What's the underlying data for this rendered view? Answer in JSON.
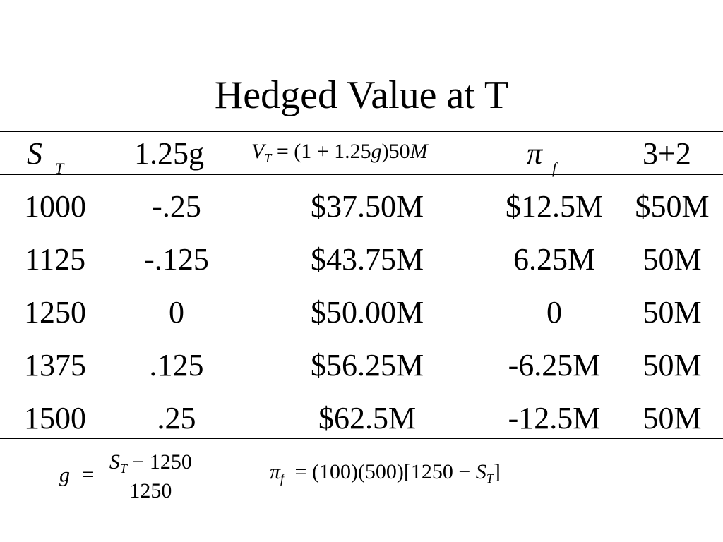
{
  "title": "Hedged Value at T",
  "headers": {
    "col0": {
      "main": "S",
      "sub": "T"
    },
    "col1": "1.25g",
    "col2": {
      "V": "V",
      "Vsub": "T",
      "rest": "= (1 + 1.25",
      "g": "g",
      "close": ")50",
      "M": "M"
    },
    "col3": {
      "main": "π",
      "sub": "f"
    },
    "col4": "3+2"
  },
  "rows": [
    [
      "1000",
      "-.25",
      "$37.50M",
      "$12.5M",
      "$50M"
    ],
    [
      "1125",
      "-.125",
      "$43.75M",
      "6.25M",
      "50M"
    ],
    [
      "1250",
      "0",
      "$50.00M",
      "0",
      "50M"
    ],
    [
      "1375",
      ".125",
      "$56.25M",
      "-6.25M",
      "50M"
    ],
    [
      "1500",
      ".25",
      "$62.5M",
      "-12.5M",
      "50M"
    ]
  ],
  "footer": {
    "g_formula": {
      "lhs": "g",
      "eq": "=",
      "num_S": "S",
      "num_sub": "T",
      "num_rest": " − 1250",
      "den": "1250"
    },
    "pi_formula": {
      "pi": "π",
      "sub": "f",
      "eq": "= (100)(500)[1250 − ",
      "S": "S",
      "Ssub": "T",
      "close": "]"
    }
  }
}
